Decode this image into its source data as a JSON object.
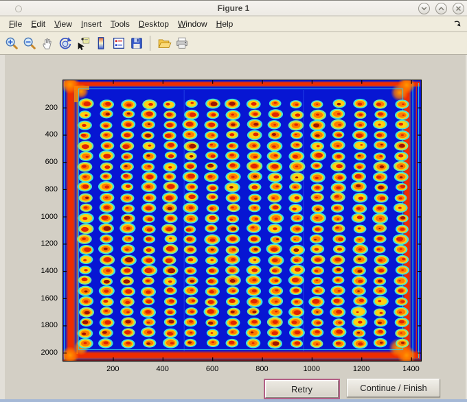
{
  "window": {
    "title": "Figure 1",
    "controls": [
      {
        "name": "minimize",
        "glyph": "chevron-down"
      },
      {
        "name": "maximize",
        "glyph": "chevron-up"
      },
      {
        "name": "close",
        "glyph": "x"
      }
    ]
  },
  "menu": {
    "items": [
      {
        "label": "File"
      },
      {
        "label": "Edit"
      },
      {
        "label": "View"
      },
      {
        "label": "Insert"
      },
      {
        "label": "Tools"
      },
      {
        "label": "Desktop"
      },
      {
        "label": "Window"
      },
      {
        "label": "Help"
      }
    ],
    "dock_arrow": "dock-figure"
  },
  "toolbar": {
    "buttons": [
      {
        "name": "zoom-in",
        "tooltip": "Zoom In"
      },
      {
        "name": "zoom-out",
        "tooltip": "Zoom Out"
      },
      {
        "name": "pan",
        "tooltip": "Pan"
      },
      {
        "name": "rotate-3d",
        "tooltip": "Rotate 3D"
      },
      {
        "name": "data-cursor",
        "tooltip": "Data Cursor"
      },
      {
        "name": "insert-colorbar",
        "tooltip": "Insert Colorbar"
      },
      {
        "name": "insert-legend",
        "tooltip": "Insert Legend"
      },
      {
        "name": "save-figure",
        "tooltip": "Save Figure"
      },
      {
        "name": "separator"
      },
      {
        "name": "open-file",
        "tooltip": "Open File"
      },
      {
        "name": "print-figure",
        "tooltip": "Print Figure"
      }
    ]
  },
  "buttons": {
    "retry": "Retry",
    "continue": "Continue / Finish"
  },
  "chart_data": {
    "type": "heatmap",
    "title": "",
    "xlabel": "",
    "ylabel": "",
    "x_ticks": [
      200,
      400,
      600,
      800,
      1000,
      1200,
      1400
    ],
    "y_ticks": [
      200,
      400,
      600,
      800,
      1000,
      1200,
      1400,
      1600,
      1800,
      2000
    ],
    "xlim": [
      0,
      1440
    ],
    "ylim": [
      0,
      2060
    ],
    "grid_lines": false,
    "tick_dir": "in",
    "description": "Jet-colormap pseudocolor scan image of a 384-well microplate: 24 rows x 16 columns of elliptical spots (red/orange cores, yellow halo, cyan rings) on a deep blue background, with bright red/orange borders along the plate edges.",
    "plate": {
      "rows": 24,
      "cols": 16,
      "x_start": 90,
      "x_pitch": 84.8,
      "y_start": 175,
      "y_pitch": 76.3,
      "seams_x": [
        485,
        965
      ],
      "colors": {
        "bg": "#0716d3",
        "ring_cyan": "#3fe3db",
        "ring_green": "#6fe8a6",
        "spot_yellow": "#ffd012",
        "spot_orange": "#ff7b00",
        "spot_red": "#e02500",
        "spot_dark_red": "#9c1400",
        "border_red": "#ee2c00",
        "border_orange": "#ff9100",
        "inner_cyan": "#33d6e8"
      }
    }
  }
}
